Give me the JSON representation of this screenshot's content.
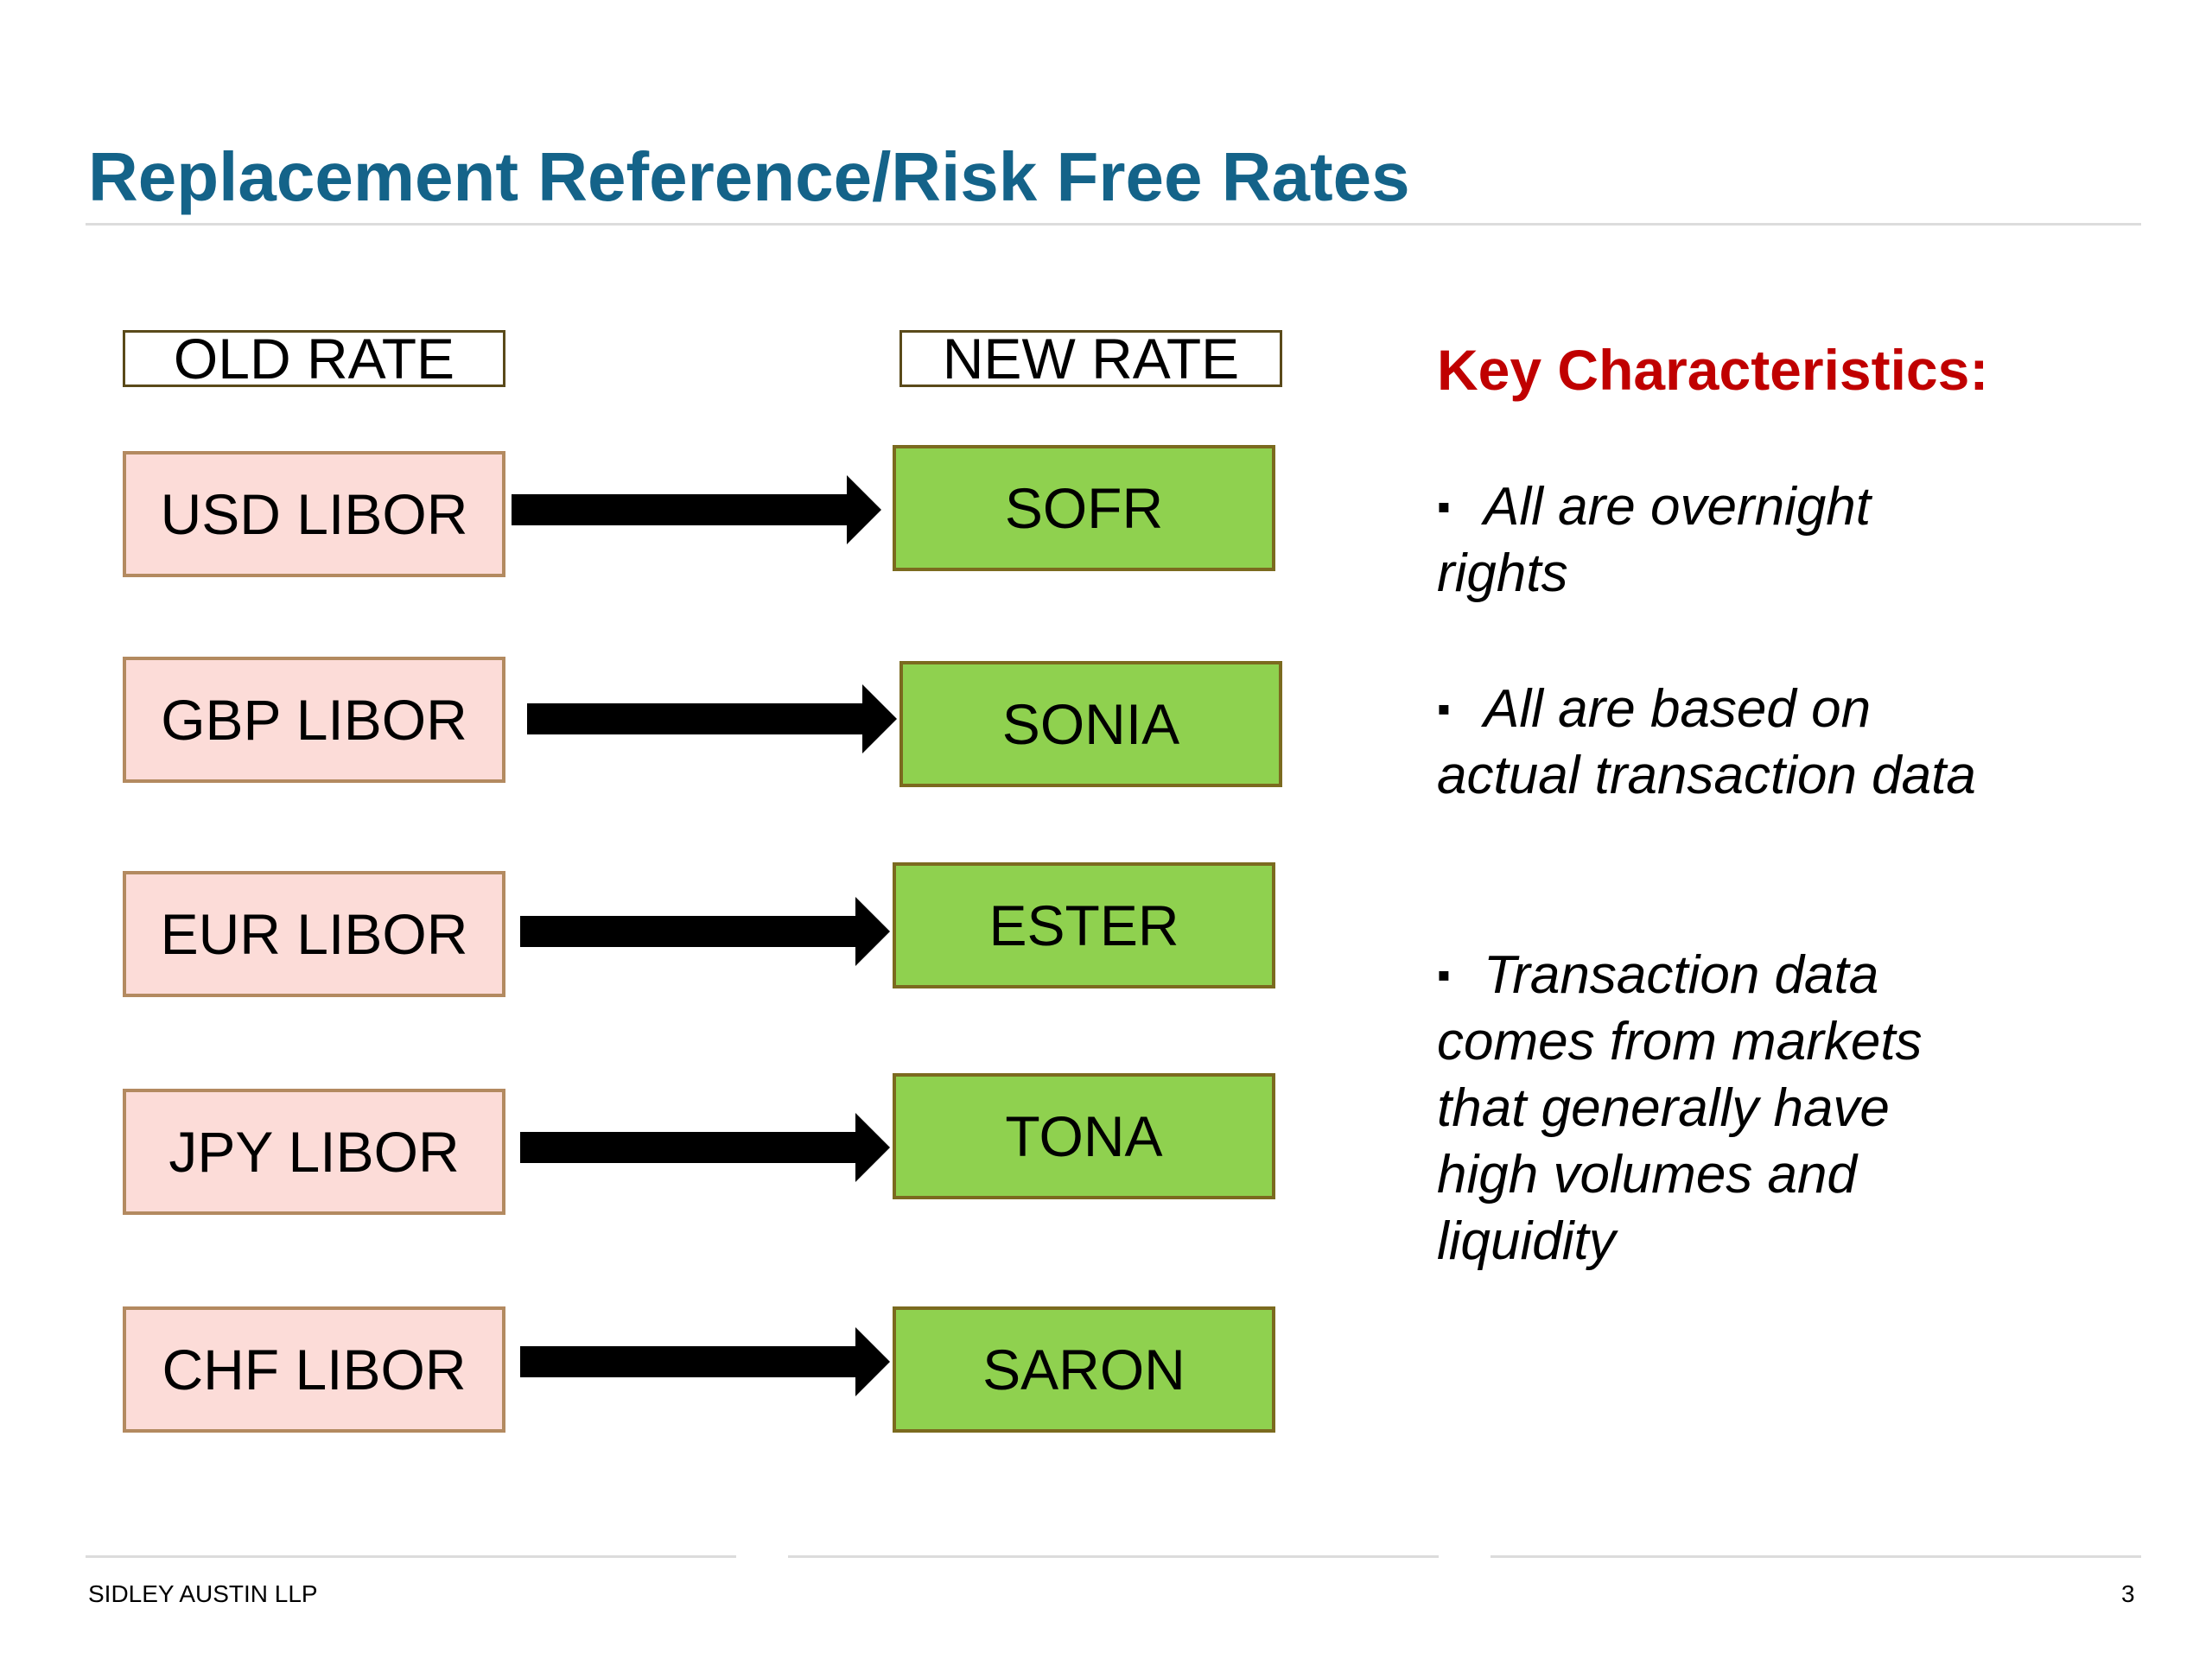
{
  "title": "Replacement Reference/Risk Free Rates",
  "headers": {
    "old": "OLD RATE",
    "new": "NEW RATE"
  },
  "rates": [
    {
      "old": "USD LIBOR",
      "new": "SOFR"
    },
    {
      "old": "GBP LIBOR",
      "new": "SONIA"
    },
    {
      "old": "EUR LIBOR",
      "new": "ESTER"
    },
    {
      "old": "JPY LIBOR",
      "new": "TONA"
    },
    {
      "old": "CHF LIBOR",
      "new": "SARON"
    }
  ],
  "key": {
    "title": "Key Characteristics:",
    "bullet_mark": "▪",
    "bullets": [
      "All are overnight rights",
      "All are based on actual transaction data",
      "Transaction data comes from markets that generally have high volumes and liquidity"
    ]
  },
  "footer": {
    "firm": "SIDLEY AUSTIN LLP",
    "page": "3"
  },
  "colors": {
    "title": "#146389",
    "key_title": "#c00000",
    "old_fill": "#fcdcd8",
    "new_fill": "#8fd14f",
    "arrow": "#000000"
  }
}
